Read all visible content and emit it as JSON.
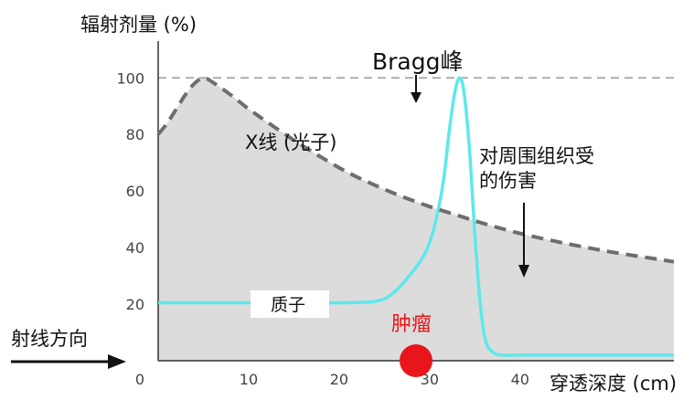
{
  "chart_data": {
    "type": "line",
    "ylabel": "辐射剂量 (%)",
    "xlabel": "穿透深度 (cm)",
    "x_ticks": [
      "0",
      "10",
      "20",
      "30",
      "40"
    ],
    "y_ticks": [
      "20",
      "40",
      "60",
      "80",
      "100"
    ],
    "xlim": [
      0,
      57
    ],
    "ylim": [
      0,
      113
    ],
    "reference_line_y": 100,
    "series": [
      {
        "name": "X线 (光子)",
        "style": "dashed",
        "color": "#6e6e6e",
        "x": [
          0,
          1,
          2,
          3,
          4,
          5,
          6,
          8,
          10,
          12,
          15,
          18,
          21,
          24,
          27,
          30,
          33,
          36,
          40,
          45,
          50,
          55,
          57
        ],
        "y": [
          80,
          84,
          89,
          94,
          98,
          100,
          98.5,
          94,
          89,
          84.5,
          78,
          72,
          66.5,
          62,
          58,
          54.5,
          51.5,
          48.5,
          45,
          41.5,
          38.5,
          36,
          35
        ]
      },
      {
        "name": "质子",
        "style": "solid",
        "color": "#5ee8ec",
        "x": [
          0,
          5,
          10,
          15,
          20,
          24,
          26,
          28,
          29.5,
          30.5,
          31.5,
          32.2,
          32.8,
          33.3,
          33.8,
          34.4,
          35,
          35.6,
          36.2,
          37,
          38,
          40,
          45,
          50,
          57
        ],
        "y": [
          20.5,
          20.5,
          20.5,
          20.5,
          20.5,
          21,
          24,
          31,
          38,
          47,
          63,
          82,
          95,
          100,
          95,
          75,
          45,
          20,
          7,
          3,
          2,
          2,
          2,
          2,
          2
        ]
      }
    ],
    "annotations": {
      "photon_label": "X线 (光子)",
      "proton_label": "质子",
      "bragg_peak": "Bragg峰",
      "tissue_damage_line1": "对周围组织受",
      "tissue_damage_line2": "的伤害",
      "tumor": "肿瘤",
      "beam_direction": "射线方向"
    },
    "colors": {
      "photon_area": "#dcdcdc",
      "proton_line": "#5ee8ec",
      "tumor": "#e8161b",
      "reference_line": "#9a9a9a"
    }
  }
}
